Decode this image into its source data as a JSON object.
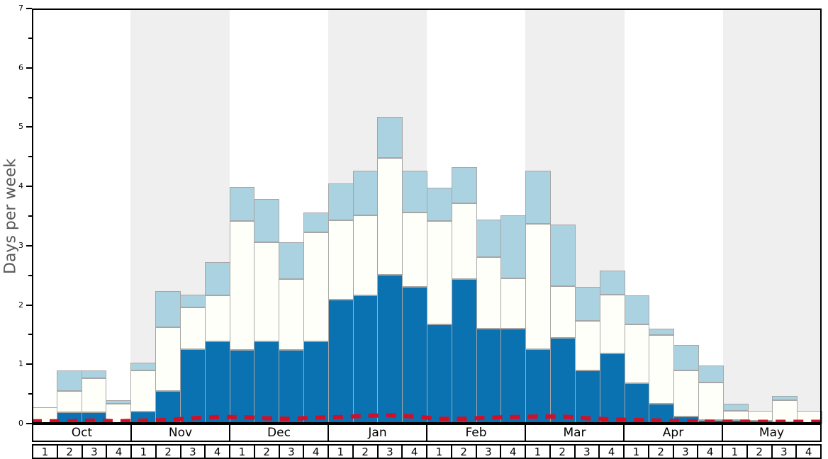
{
  "chart_data": {
    "type": "bar",
    "stacked": true,
    "title": "",
    "ylabel": "Days per week",
    "xlabel": "",
    "ylim": [
      0,
      7
    ],
    "ytick_step": 1,
    "yminor_step": 0.5,
    "yticks": [
      0,
      1,
      2,
      3,
      4,
      5,
      6,
      7
    ],
    "months": [
      "Oct",
      "Nov",
      "Dec",
      "Jan",
      "Feb",
      "Mar",
      "Apr",
      "May"
    ],
    "weeks_per_month": 4,
    "week_labels": [
      "1",
      "2",
      "3",
      "4"
    ],
    "legend_visible": false,
    "grid": false,
    "series": [
      {
        "name": "dark-blue-segment",
        "color": "#0b72b2",
        "values": [
          0,
          0.19,
          0.19,
          0,
          0.2,
          0.55,
          1.25,
          1.39,
          1.24,
          1.39,
          1.24,
          1.39,
          2.09,
          2.16,
          2.51,
          2.3,
          1.67,
          2.44,
          1.6,
          1.6,
          1.25,
          1.44,
          0.9,
          1.18,
          0.68,
          0.33,
          0.12,
          0.06,
          0.06,
          0.05,
          0.02,
          0
        ]
      },
      {
        "name": "white-segment",
        "color": "#fffffa",
        "values": [
          0.27,
          0.36,
          0.57,
          0.33,
          0.7,
          1.07,
          0.71,
          0.77,
          2.18,
          1.67,
          1.2,
          1.83,
          1.34,
          1.35,
          1.97,
          1.26,
          1.75,
          1.27,
          1.21,
          0.85,
          2.12,
          0.88,
          0.83,
          0.99,
          0.99,
          1.16,
          0.78,
          0.63,
          0.16,
          0.17,
          0.37,
          0.21
        ]
      },
      {
        "name": "light-blue-segment",
        "color": "#abd2e0",
        "values": [
          0,
          0.35,
          0.14,
          0.07,
          0.13,
          0.62,
          0.21,
          0.56,
          0.57,
          0.73,
          0.62,
          0.34,
          0.62,
          0.76,
          0.69,
          0.71,
          0.56,
          0.62,
          0.63,
          1.06,
          0.89,
          1.04,
          0.57,
          0.41,
          0.49,
          0.11,
          0.43,
          0.29,
          0.12,
          0,
          0.08,
          0
        ]
      }
    ],
    "trend_line": {
      "name": "red-dashed-line",
      "color": "#d10f26",
      "style": "dashed",
      "values": [
        0.04,
        0.04,
        0.05,
        0.04,
        0.05,
        0.06,
        0.09,
        0.11,
        0.11,
        0.09,
        0.08,
        0.1,
        0.11,
        0.13,
        0.14,
        0.12,
        0.08,
        0.08,
        0.1,
        0.11,
        0.12,
        0.12,
        0.09,
        0.07,
        0.06,
        0.05,
        0.04,
        0.03,
        0.03,
        0.03,
        0.03,
        0.03
      ]
    },
    "background_bands": {
      "shaded_months": [
        "Nov",
        "Jan",
        "Mar",
        "May"
      ],
      "shaded_color": "#efefef",
      "unshaded_color": "#ffffff"
    },
    "bar_border_color": "#a6a6a6",
    "axis_color": "#000000",
    "ylabel_color": "#595959"
  }
}
